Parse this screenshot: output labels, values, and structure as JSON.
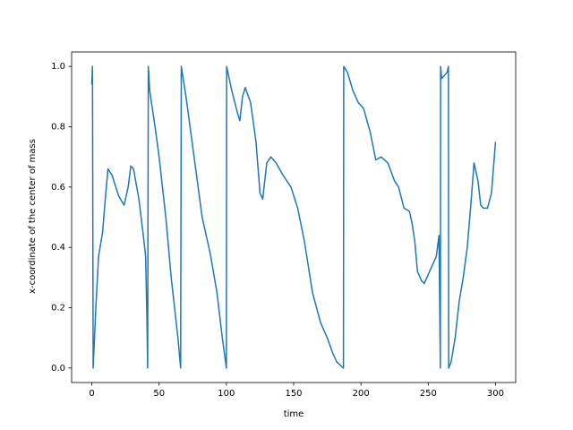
{
  "chart_data": {
    "type": "line",
    "xlabel": "time",
    "ylabel": "x-coordinate of the center of mass",
    "color": "#1f77b4",
    "x": [
      0,
      0.5,
      1,
      3,
      5,
      8,
      10,
      12,
      15,
      20,
      24,
      27,
      29,
      31,
      35,
      38,
      40,
      41,
      41.5,
      42,
      43,
      47,
      50,
      55,
      59,
      64,
      66,
      66.5,
      70,
      76,
      82,
      88,
      93,
      97,
      100,
      100.2,
      104,
      108,
      110,
      112,
      114,
      118,
      122,
      125,
      127,
      130,
      133,
      137,
      142,
      148,
      153,
      158,
      164,
      170,
      175,
      179,
      182,
      187,
      187.2,
      190,
      194,
      198,
      202,
      207,
      211,
      215,
      220,
      225,
      228,
      232,
      236,
      238,
      240,
      242,
      245,
      247,
      252,
      256,
      258,
      259,
      259.2,
      260,
      262,
      264,
      265,
      265.2,
      267,
      270,
      273,
      276,
      279,
      282,
      284,
      287,
      289,
      291,
      294,
      297,
      300
    ],
    "values": [
      0.94,
      1.0,
      0.0,
      0.2,
      0.37,
      0.45,
      0.56,
      0.66,
      0.64,
      0.57,
      0.54,
      0.6,
      0.67,
      0.66,
      0.56,
      0.45,
      0.37,
      0.15,
      0.0,
      1.0,
      0.92,
      0.8,
      0.7,
      0.5,
      0.3,
      0.1,
      0.0,
      1.0,
      0.9,
      0.7,
      0.5,
      0.38,
      0.25,
      0.1,
      0.0,
      1.0,
      0.92,
      0.85,
      0.82,
      0.9,
      0.93,
      0.88,
      0.75,
      0.58,
      0.56,
      0.68,
      0.7,
      0.68,
      0.64,
      0.6,
      0.53,
      0.42,
      0.25,
      0.15,
      0.1,
      0.05,
      0.02,
      0.0,
      1.0,
      0.98,
      0.92,
      0.88,
      0.86,
      0.78,
      0.69,
      0.7,
      0.68,
      0.62,
      0.6,
      0.53,
      0.52,
      0.48,
      0.42,
      0.32,
      0.29,
      0.28,
      0.33,
      0.37,
      0.44,
      0.0,
      1.0,
      0.96,
      0.97,
      0.98,
      1.0,
      0.0,
      0.02,
      0.1,
      0.22,
      0.3,
      0.4,
      0.56,
      0.68,
      0.62,
      0.54,
      0.53,
      0.53,
      0.58,
      0.75
    ],
    "xlim": [
      -15,
      315
    ],
    "ylim": [
      -0.048,
      1.048
    ],
    "xticks": [
      0,
      50,
      100,
      150,
      200,
      250,
      300
    ],
    "yticks": [
      {
        "value": 0,
        "label": "0.0"
      },
      0.2,
      0.4,
      0.6,
      0.8,
      {
        "value": 1,
        "label": "1.0"
      }
    ]
  }
}
